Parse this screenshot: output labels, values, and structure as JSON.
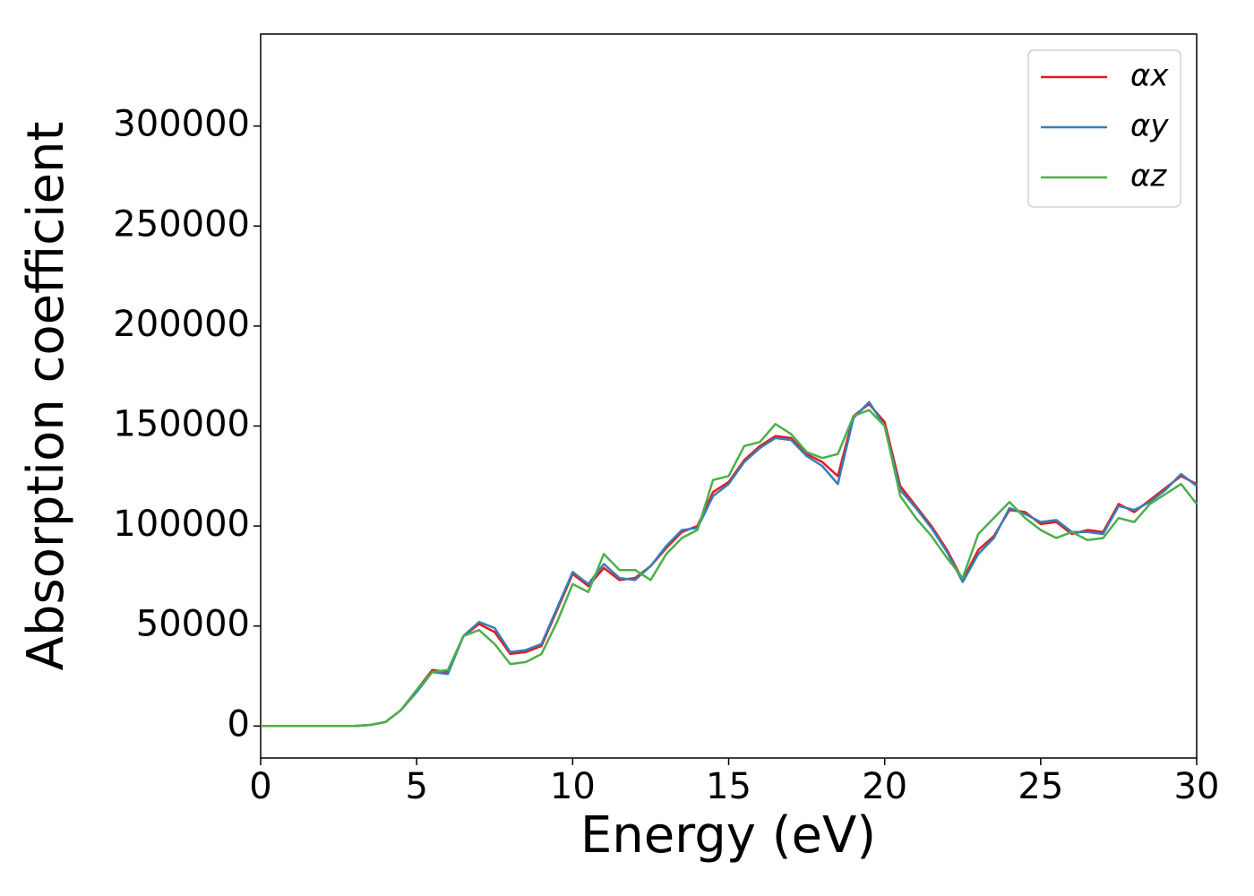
{
  "chart_data": {
    "type": "line",
    "xlabel": "Energy (eV)",
    "ylabel": "Absorption coefficient",
    "x": [
      0,
      0.5,
      1,
      1.5,
      2,
      2.5,
      3,
      3.5,
      4,
      4.5,
      5,
      5.5,
      6,
      6.5,
      7,
      7.5,
      8,
      8.5,
      9,
      9.5,
      10,
      10.5,
      11,
      11.5,
      12,
      12.5,
      13,
      13.5,
      14,
      14.5,
      15,
      15.5,
      16,
      16.5,
      17,
      17.5,
      18,
      18.5,
      19,
      19.5,
      20,
      20.5,
      21,
      21.5,
      22,
      22.5,
      23,
      23.5,
      24,
      24.5,
      25,
      25.5,
      26,
      26.5,
      27,
      27.5,
      28,
      28.5,
      29,
      29.5,
      30
    ],
    "series": [
      {
        "name": "αx",
        "color": "#e41a1c",
        "values": [
          0,
          0,
          0,
          0,
          0,
          0,
          0,
          500,
          2000,
          8000,
          18000,
          28000,
          27000,
          45000,
          51000,
          47000,
          36000,
          37000,
          40000,
          58000,
          76000,
          70000,
          79000,
          73000,
          74000,
          80000,
          89000,
          97000,
          100000,
          117000,
          122000,
          133000,
          140000,
          145000,
          144000,
          136000,
          132000,
          125000,
          155000,
          161000,
          152000,
          120000,
          110000,
          100000,
          88000,
          73000,
          88000,
          95000,
          108000,
          107000,
          101000,
          102000,
          96000,
          98000,
          97000,
          111000,
          107000,
          113000,
          119000,
          125000,
          121000
        ]
      },
      {
        "name": "αy",
        "color": "#377eb8",
        "values": [
          0,
          0,
          0,
          0,
          0,
          0,
          0,
          500,
          2000,
          8000,
          17000,
          27000,
          26000,
          45000,
          52000,
          49000,
          37000,
          38000,
          41000,
          59000,
          77000,
          71000,
          81000,
          74000,
          73000,
          80000,
          90000,
          98000,
          99000,
          115000,
          121000,
          132000,
          139000,
          144000,
          143000,
          135000,
          130000,
          121000,
          154000,
          162000,
          150000,
          118000,
          109000,
          99000,
          87000,
          72000,
          86000,
          94000,
          109000,
          106000,
          102000,
          103000,
          97000,
          97000,
          96000,
          110000,
          108000,
          112000,
          118000,
          126000,
          120000
        ]
      },
      {
        "name": "αz",
        "color": "#4daf4a",
        "values": [
          0,
          0,
          0,
          0,
          0,
          0,
          0,
          500,
          2000,
          8000,
          18000,
          27000,
          28000,
          45000,
          48000,
          41000,
          31000,
          32000,
          36000,
          52000,
          71000,
          67000,
          86000,
          78000,
          78000,
          73000,
          86000,
          94000,
          98000,
          123000,
          125000,
          140000,
          142000,
          151000,
          146000,
          137000,
          134000,
          136000,
          155000,
          158000,
          150000,
          115000,
          104000,
          95000,
          84000,
          74000,
          96000,
          104000,
          112000,
          104000,
          98000,
          94000,
          97000,
          93000,
          94000,
          104000,
          102000,
          111000,
          116000,
          121000,
          111000
        ]
      }
    ],
    "xlim": [
      0,
      30
    ],
    "xticks": [
      0,
      5,
      10,
      15,
      20,
      25,
      30
    ],
    "ylim": [
      -16000,
      346000
    ],
    "yticks": [
      0,
      50000,
      100000,
      150000,
      200000,
      250000,
      300000
    ],
    "grid": false,
    "legend": "upper right"
  }
}
